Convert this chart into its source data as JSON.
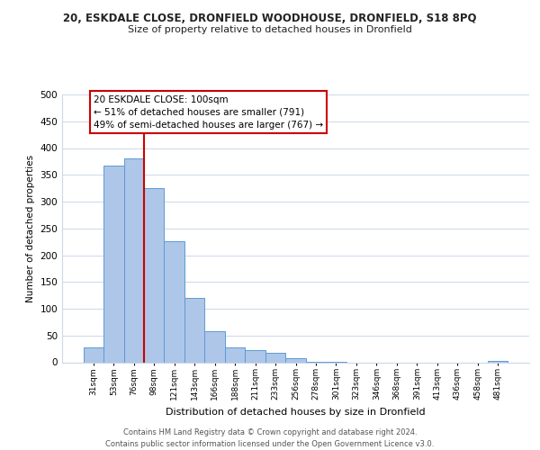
{
  "title_top": "20, ESKDALE CLOSE, DRONFIELD WOODHOUSE, DRONFIELD, S18 8PQ",
  "title_main": "Size of property relative to detached houses in Dronfield",
  "xlabel": "Distribution of detached houses by size in Dronfield",
  "ylabel": "Number of detached properties",
  "bar_labels": [
    "31sqm",
    "53sqm",
    "76sqm",
    "98sqm",
    "121sqm",
    "143sqm",
    "166sqm",
    "188sqm",
    "211sqm",
    "233sqm",
    "256sqm",
    "278sqm",
    "301sqm",
    "323sqm",
    "346sqm",
    "368sqm",
    "391sqm",
    "413sqm",
    "436sqm",
    "458sqm",
    "481sqm"
  ],
  "bar_values": [
    28,
    367,
    381,
    325,
    226,
    121,
    58,
    28,
    23,
    17,
    7,
    1,
    1,
    0,
    0,
    0,
    0,
    0,
    0,
    0,
    2
  ],
  "bar_color": "#aec6e8",
  "bar_edge_color": "#5b9bd5",
  "vline_color": "#cc0000",
  "annotation_text": "20 ESKDALE CLOSE: 100sqm\n← 51% of detached houses are smaller (791)\n49% of semi-detached houses are larger (767) →",
  "annotation_box_color": "#ffffff",
  "annotation_box_edge": "#cc0000",
  "ylim": [
    0,
    500
  ],
  "yticks": [
    0,
    50,
    100,
    150,
    200,
    250,
    300,
    350,
    400,
    450,
    500
  ],
  "footer_text": "Contains HM Land Registry data © Crown copyright and database right 2024.\nContains public sector information licensed under the Open Government Licence v3.0.",
  "bg_color": "#ffffff",
  "grid_color": "#ccd8ec"
}
